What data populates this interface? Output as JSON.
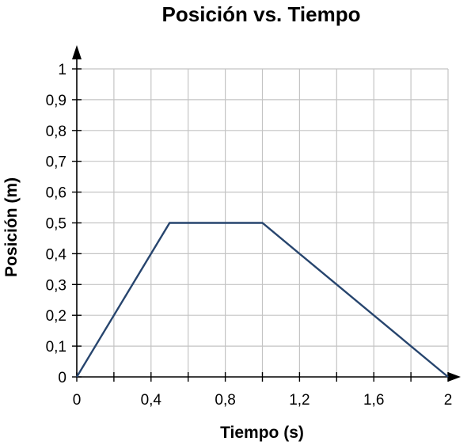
{
  "chart_data": {
    "type": "line",
    "title": "Posición vs. Tiempo",
    "xlabel": "Tiempo (s)",
    "ylabel": "Posición (m)",
    "xlim": [
      0,
      2
    ],
    "ylim": [
      0,
      1
    ],
    "x_tick_labels": [
      {
        "value": 0,
        "label": "0"
      },
      {
        "value": 0.4,
        "label": "0,4"
      },
      {
        "value": 0.8,
        "label": "0,8"
      },
      {
        "value": 1.2,
        "label": "1,2"
      },
      {
        "value": 1.6,
        "label": "1,6"
      },
      {
        "value": 2,
        "label": "2"
      }
    ],
    "x_grid_step": 0.2,
    "y_tick_labels": [
      {
        "value": 0,
        "label": "0"
      },
      {
        "value": 0.1,
        "label": "0,1"
      },
      {
        "value": 0.2,
        "label": "0,2"
      },
      {
        "value": 0.3,
        "label": "0,3"
      },
      {
        "value": 0.4,
        "label": "0,4"
      },
      {
        "value": 0.5,
        "label": "0,5"
      },
      {
        "value": 0.6,
        "label": "0,6"
      },
      {
        "value": 0.7,
        "label": "0,7"
      },
      {
        "value": 0.8,
        "label": "0,8"
      },
      {
        "value": 0.9,
        "label": "0,9"
      },
      {
        "value": 1,
        "label": "1"
      }
    ],
    "grid": true,
    "legend": "none",
    "series": [
      {
        "color": "#27456e",
        "x": [
          0,
          0.5,
          1,
          2
        ],
        "y": [
          0,
          0.5,
          0.5,
          0
        ]
      }
    ]
  }
}
